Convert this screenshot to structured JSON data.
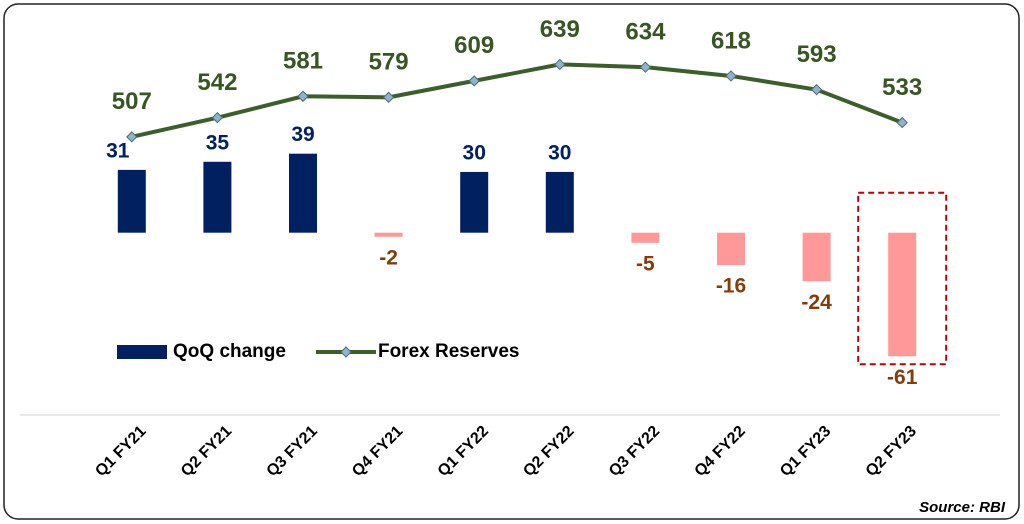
{
  "chart_data": {
    "type": "combo",
    "categories": [
      "Q1 FY21",
      "Q2 FY21",
      "Q3 FY21",
      "Q4 FY21",
      "Q1 FY22",
      "Q2 FY22",
      "Q3 FY22",
      "Q4 FY22",
      "Q1 FY23",
      "Q2 FY23"
    ],
    "series": [
      {
        "name": "QoQ change",
        "type": "bar",
        "color": "#002060",
        "negative_color": "#ff9999",
        "label_color": "#002060",
        "negative_label_color": "#843c0c",
        "values": [
          31,
          35,
          39,
          -2,
          30,
          30,
          -5,
          -16,
          -24,
          -61
        ]
      },
      {
        "name": "Forex Reserves",
        "type": "line",
        "axis": "y2",
        "color": "#3b5e2b",
        "marker_color": "#8fb4c8",
        "label_color": "#375623",
        "values": [
          507,
          542,
          581,
          579,
          609,
          639,
          634,
          618,
          593,
          533
        ]
      }
    ],
    "ylim": [
      -90,
      105
    ],
    "y2lim": [
      0,
      720
    ],
    "legend": "bottom-left",
    "source": "Source: RBI"
  }
}
